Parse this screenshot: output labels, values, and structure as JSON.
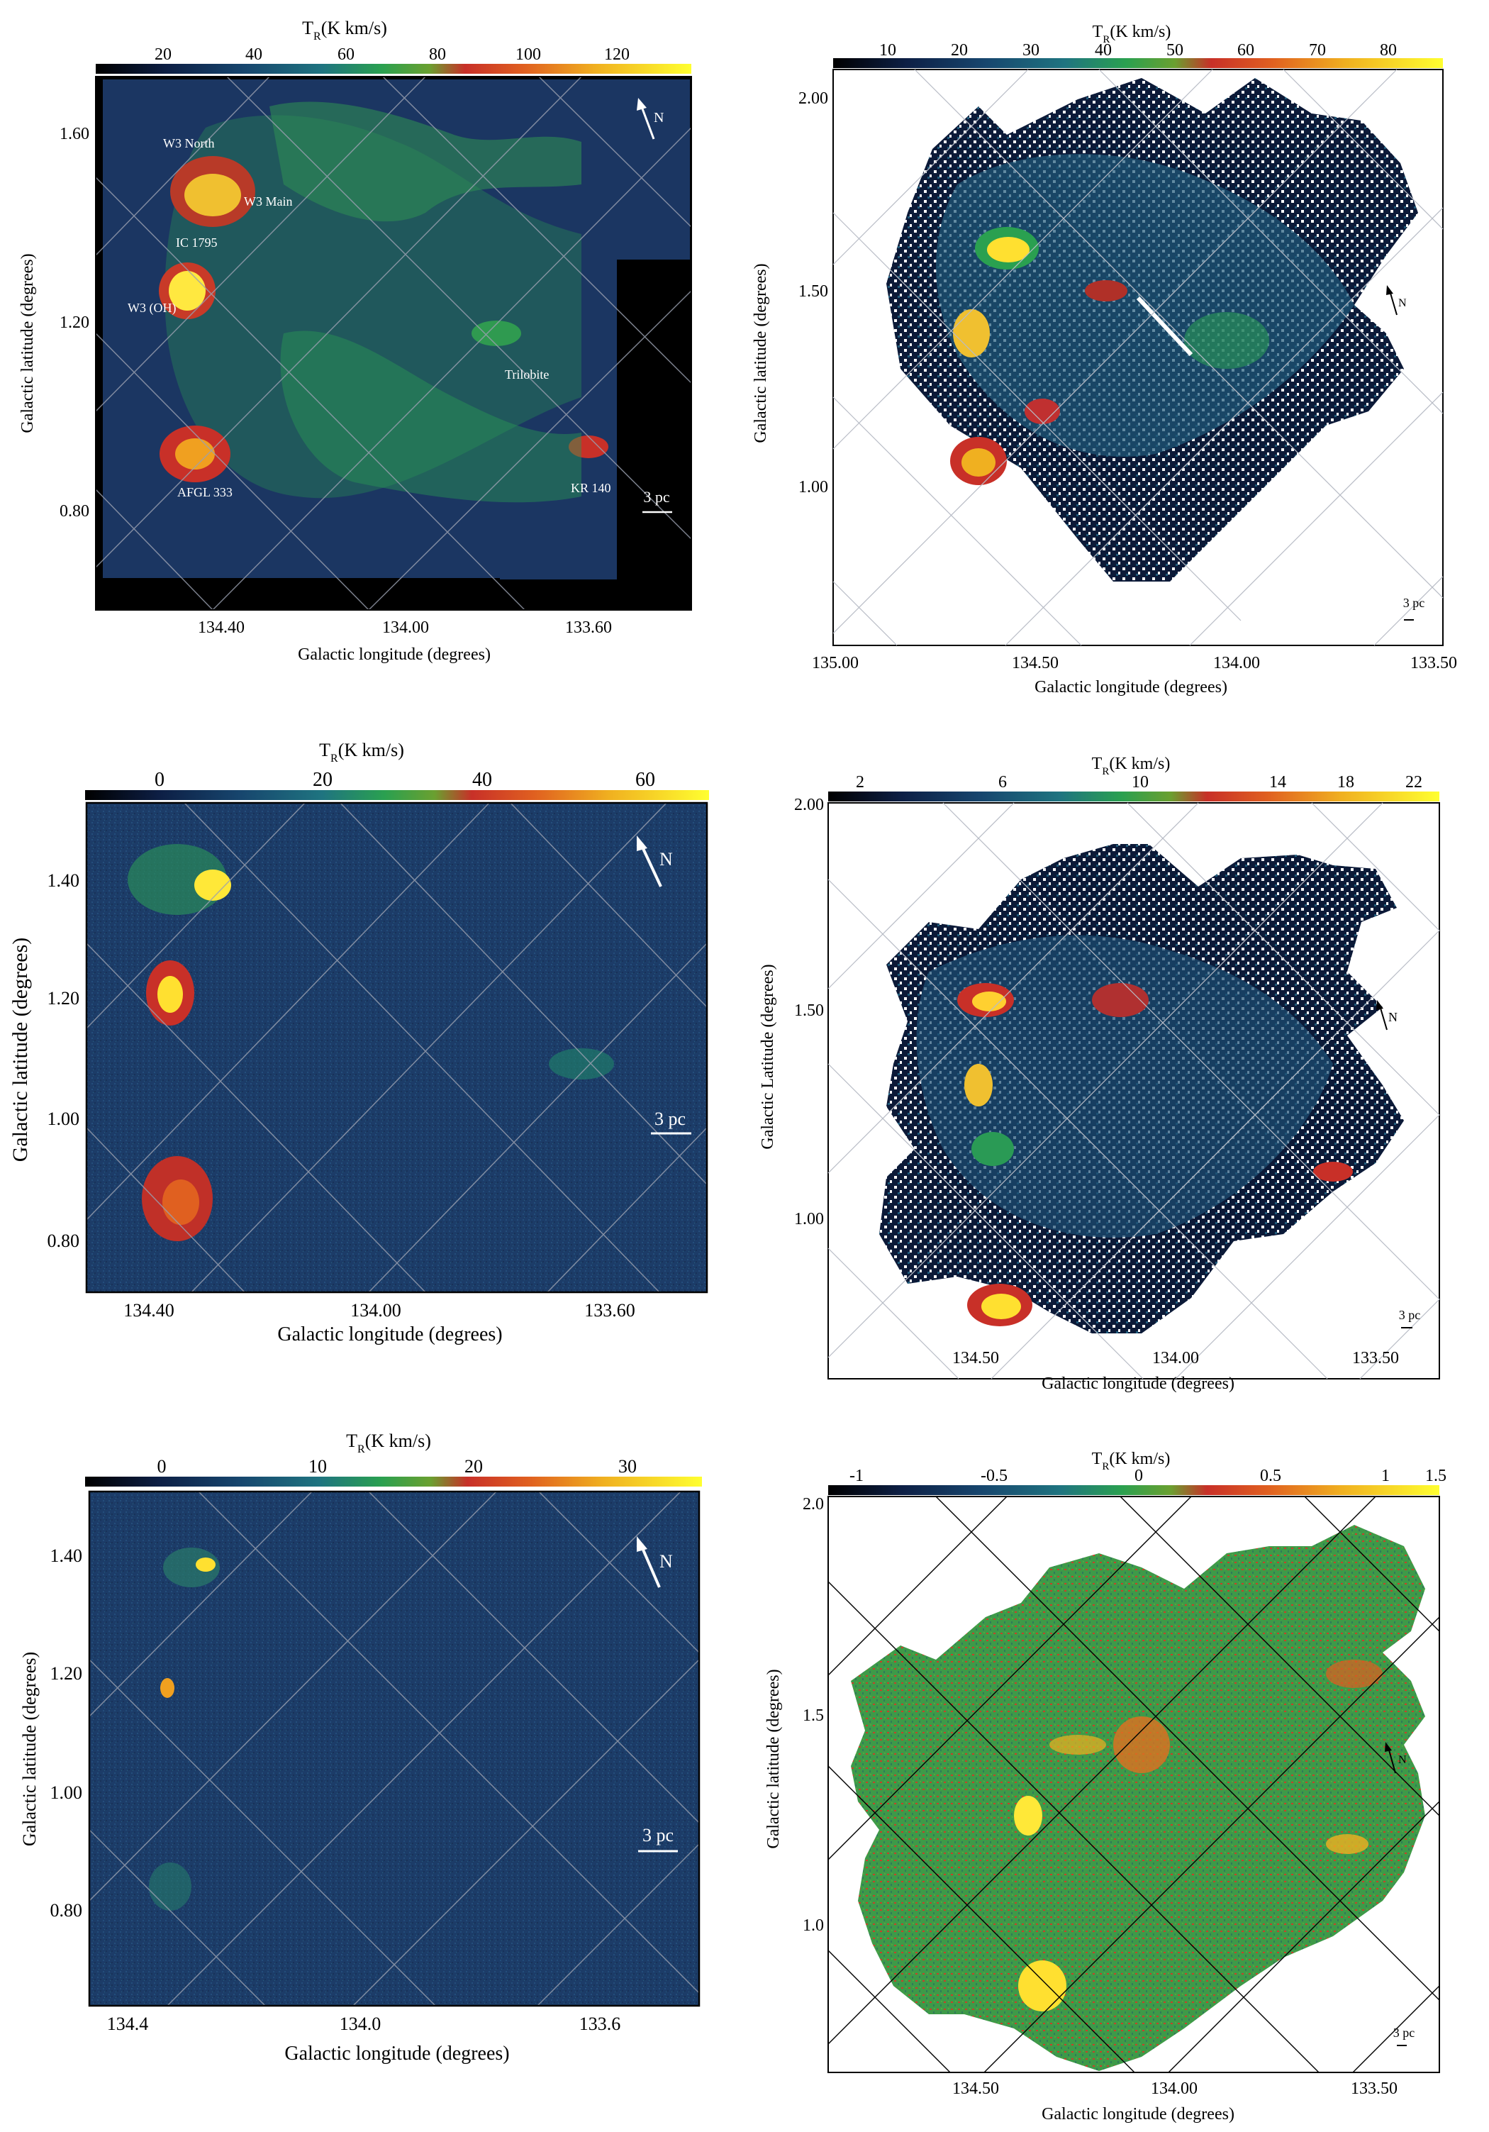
{
  "colors": {
    "cmap": [
      "#000000",
      "#0a1a3a",
      "#17345f",
      "#1e4f7a",
      "#20707a",
      "#2a9a55",
      "#45b040",
      "#c83025",
      "#e05a20",
      "#f0a020",
      "#ffe020",
      "#ffff40"
    ],
    "map_bg": "#1b3560",
    "white": "#ffffff",
    "grid_light": "#9aa0b0",
    "grid_dark": "#000000",
    "green_bg": "#3d9a4a"
  },
  "panels": [
    {
      "id": "p1",
      "colorbar_title_main": "T",
      "colorbar_title_sub": "R",
      "colorbar_title_rest": "(K km/s)",
      "colorbar_ticks": [
        "20",
        "40",
        "60",
        "80",
        "100",
        "120"
      ],
      "xlabel": "Galactic longitude (degrees)",
      "ylabel": "Galactic latitude (degrees)",
      "xticks": [
        "134.40",
        "134.00",
        "133.60"
      ],
      "yticks": [
        "1.60",
        "1.20",
        "0.80"
      ],
      "north": "N",
      "scale": "3 pc",
      "labels": [
        "W3 North",
        "W3 Main",
        "IC 1795",
        "W3 (OH)",
        "Trilobite",
        "AFGL 333",
        "KR 140"
      ]
    },
    {
      "id": "p2",
      "colorbar_title_main": "T",
      "colorbar_title_sub": "R",
      "colorbar_title_rest": "(K km/s)",
      "colorbar_ticks": [
        "10",
        "20",
        "30",
        "40",
        "50",
        "60",
        "70",
        "80"
      ],
      "xlabel": "Galactic longitude (degrees)",
      "ylabel": "Galactic latitude (degrees)",
      "xticks": [
        "135.00",
        "134.50",
        "134.00",
        "133.50"
      ],
      "yticks": [
        "2.00",
        "1.50",
        "1.00"
      ],
      "north": "N",
      "scale": "3 pc"
    },
    {
      "id": "p3",
      "colorbar_title_main": "T",
      "colorbar_title_sub": "R",
      "colorbar_title_rest": "(K km/s)",
      "colorbar_ticks": [
        "0",
        "20",
        "40",
        "60"
      ],
      "xlabel": "Galactic longitude (degrees)",
      "ylabel": "Galactic latitude (degrees)",
      "xticks": [
        "134.40",
        "134.00",
        "133.60"
      ],
      "yticks": [
        "1.40",
        "1.20",
        "1.00",
        "0.80"
      ],
      "north": "N",
      "scale": "3 pc"
    },
    {
      "id": "p4",
      "colorbar_title_main": "T",
      "colorbar_title_sub": "R",
      "colorbar_title_rest": "(K km/s)",
      "colorbar_ticks": [
        "2",
        "6",
        "10",
        "14",
        "18",
        "22"
      ],
      "xlabel": "Galactic longitude (degrees)",
      "ylabel": "Galactic Latitude (degrees)",
      "xticks": [
        "134.50",
        "134.00",
        "133.50"
      ],
      "yticks": [
        "2.00",
        "1.50",
        "1.00"
      ],
      "north": "N",
      "scale": "3 pc"
    },
    {
      "id": "p5",
      "colorbar_title_main": "T",
      "colorbar_title_sub": "R",
      "colorbar_title_rest": "(K km/s)",
      "colorbar_ticks": [
        "0",
        "10",
        "20",
        "30"
      ],
      "xlabel": "Galactic longitude (degrees)",
      "ylabel": "Galactic latitude (degrees)",
      "xticks": [
        "134.4",
        "134.0",
        "133.6"
      ],
      "yticks": [
        "1.40",
        "1.20",
        "1.00",
        "0.80"
      ],
      "north": "N",
      "scale": "3 pc"
    },
    {
      "id": "p6",
      "colorbar_title_main": "T",
      "colorbar_title_sub": "R",
      "colorbar_title_rest": "(K km/s)",
      "colorbar_ticks": [
        "-1",
        "-0.5",
        "0",
        "0.5",
        "1",
        "1.5"
      ],
      "xlabel": "Galactic longitude (degrees)",
      "ylabel": "Galactic latitude (degrees)",
      "xticks": [
        "134.50",
        "134.00",
        "133.50"
      ],
      "yticks": [
        "2.0",
        "1.5",
        "1.0"
      ],
      "north": "N",
      "scale": "3 pc"
    }
  ]
}
